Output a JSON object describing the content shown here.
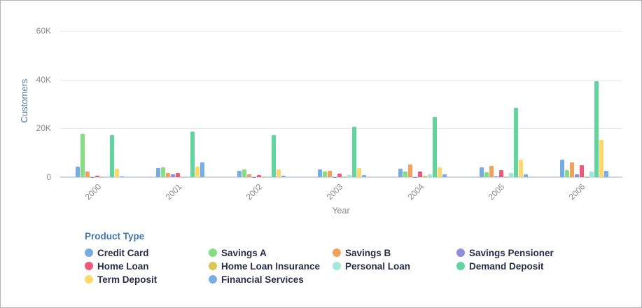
{
  "chart": {
    "y_axis_title": "Customers",
    "x_axis_title": "Year",
    "legend_title": "Product Type"
  },
  "chart_data": {
    "type": "bar",
    "title": "",
    "xlabel": "Year",
    "ylabel": "Customers",
    "legend_title": "Product Type",
    "legend_position": "bottom",
    "grid": "horizontal",
    "ylim": [
      0,
      60000
    ],
    "ytick_values": [
      0,
      20000,
      40000,
      60000
    ],
    "ytick_labels": [
      "0",
      "20K",
      "40K",
      "60K"
    ],
    "categories": [
      "2000",
      "2001",
      "2002",
      "2003",
      "2004",
      "2005",
      "2006"
    ],
    "series": [
      {
        "name": "Credit Card",
        "color": "#76ace2",
        "values": [
          4400,
          3800,
          2700,
          3200,
          3600,
          3900,
          7100
        ]
      },
      {
        "name": "Savings A",
        "color": "#85de82",
        "values": [
          17900,
          4100,
          3100,
          2400,
          2200,
          2000,
          2800
        ]
      },
      {
        "name": "Savings B",
        "color": "#f2a15a",
        "values": [
          2200,
          1800,
          1200,
          2600,
          5200,
          4600,
          6100
        ]
      },
      {
        "name": "Savings Pensioner",
        "color": "#8e8ede",
        "values": [
          100,
          1200,
          100,
          100,
          100,
          400,
          1300
        ]
      },
      {
        "name": "Home Loan",
        "color": "#ee5879",
        "values": [
          600,
          1600,
          900,
          1500,
          2400,
          2800,
          5000
        ]
      },
      {
        "name": "Home Loan Insurance",
        "color": "#dcc651",
        "values": [
          100,
          100,
          100,
          100,
          600,
          100,
          100
        ]
      },
      {
        "name": "Personal Loan",
        "color": "#9ee8dc",
        "values": [
          100,
          100,
          100,
          900,
          1200,
          1600,
          2200
        ]
      },
      {
        "name": "Demand Deposit",
        "color": "#62d49e",
        "values": [
          17200,
          18600,
          17100,
          20700,
          24600,
          28400,
          39300
        ]
      },
      {
        "name": "Term Deposit",
        "color": "#fbda6b",
        "values": [
          3400,
          4400,
          3300,
          3800,
          4100,
          7200,
          15300
        ]
      },
      {
        "name": "Financial Services",
        "color": "#77aee6",
        "values": [
          200,
          6000,
          700,
          900,
          1200,
          1200,
          2600
        ]
      }
    ]
  },
  "colors": {
    "gridline": "#e7e7e7",
    "baseline": "#ccd7ec",
    "tick_label": "#8c8c8c",
    "y_axis_title": "#5580ac",
    "legend_title": "#4478aa",
    "legend_text": "#262e48",
    "background": "#ffffff",
    "frame_border": "#b3b3b3"
  }
}
